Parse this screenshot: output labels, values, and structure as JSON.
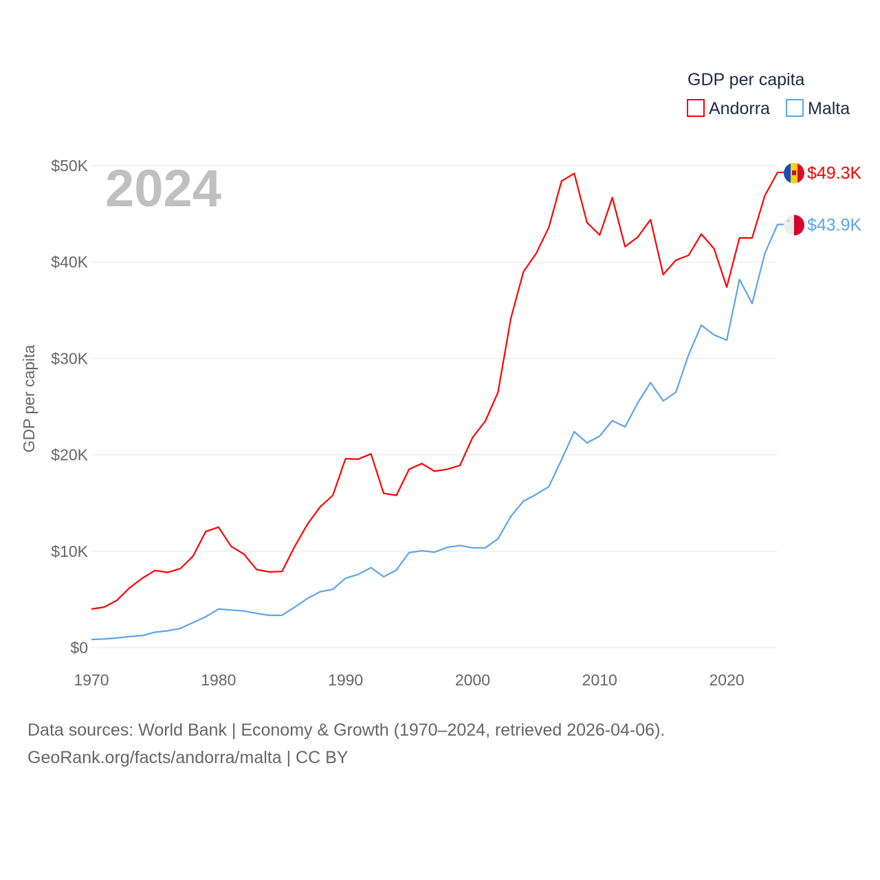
{
  "chart_data": {
    "type": "line",
    "title": "",
    "year_label": "2024",
    "xlabel": "",
    "ylabel": "GDP per capita",
    "xlim": [
      1970,
      2024
    ],
    "ylim": [
      0,
      50000
    ],
    "x_ticks": [
      1970,
      1980,
      1990,
      2000,
      2010,
      2020
    ],
    "y_ticks": [
      0,
      10000,
      20000,
      30000,
      40000,
      50000
    ],
    "y_tick_labels": [
      "$0",
      "$10K",
      "$20K",
      "$30K",
      "$40K",
      "$50K"
    ],
    "grid": true,
    "legend": {
      "title": "GDP per capita",
      "position": "top-right"
    },
    "x": [
      1970,
      1971,
      1972,
      1973,
      1974,
      1975,
      1976,
      1977,
      1978,
      1979,
      1980,
      1981,
      1982,
      1983,
      1984,
      1985,
      1986,
      1987,
      1988,
      1989,
      1990,
      1991,
      1992,
      1993,
      1994,
      1995,
      1996,
      1997,
      1998,
      1999,
      2000,
      2001,
      2002,
      2003,
      2004,
      2005,
      2006,
      2007,
      2008,
      2009,
      2010,
      2011,
      2012,
      2013,
      2014,
      2015,
      2016,
      2017,
      2018,
      2019,
      2020,
      2021,
      2022,
      2023,
      2024
    ],
    "series": [
      {
        "name": "Andorra",
        "color": "#ff0000",
        "end_label": "$49.3K",
        "flag": "andorra-flag",
        "values": [
          4.0,
          4.2,
          4.9,
          6.2,
          7.2,
          8.0,
          7.8,
          8.2,
          9.5,
          12.05,
          12.5,
          10.5,
          9.7,
          8.1,
          7.85,
          7.9,
          10.5,
          12.8,
          14.6,
          15.8,
          19.6,
          19.55,
          20.1,
          16.0,
          15.8,
          18.5,
          19.1,
          18.3,
          18.5,
          18.9,
          21.8,
          23.5,
          26.5,
          34.1,
          39.0,
          40.9,
          43.6,
          48.4,
          49.2,
          44.1,
          42.8,
          46.7,
          41.6,
          42.6,
          44.4,
          38.7,
          40.2,
          40.7,
          42.9,
          41.4,
          37.4,
          42.5,
          42.5,
          46.9,
          49.3
        ]
      },
      {
        "name": "Malta",
        "color": "#5ba4ec",
        "end_label": "$43.9K",
        "flag": "malta-flag",
        "values": [
          0.85,
          0.9,
          1.0,
          1.15,
          1.25,
          1.6,
          1.75,
          2.0,
          2.6,
          3.2,
          4.0,
          3.9,
          3.8,
          3.55,
          3.35,
          3.35,
          4.2,
          5.1,
          5.8,
          6.05,
          7.2,
          7.6,
          8.3,
          7.35,
          8.05,
          9.85,
          10.05,
          9.9,
          10.4,
          10.6,
          10.35,
          10.35,
          11.3,
          13.6,
          15.2,
          15.9,
          16.7,
          19.5,
          22.4,
          21.25,
          21.95,
          23.55,
          22.9,
          25.4,
          27.5,
          25.6,
          26.5,
          30.4,
          33.45,
          32.45,
          31.9,
          38.2,
          35.7,
          40.9,
          43.9
        ]
      }
    ],
    "value_unit": "thousand USD"
  },
  "footer": {
    "line1": "Data sources: World Bank | Economy & Growth (1970–2024, retrieved 2026-04-06).",
    "line2": "GeoRank.org/facts/andorra/malta | CC BY"
  }
}
